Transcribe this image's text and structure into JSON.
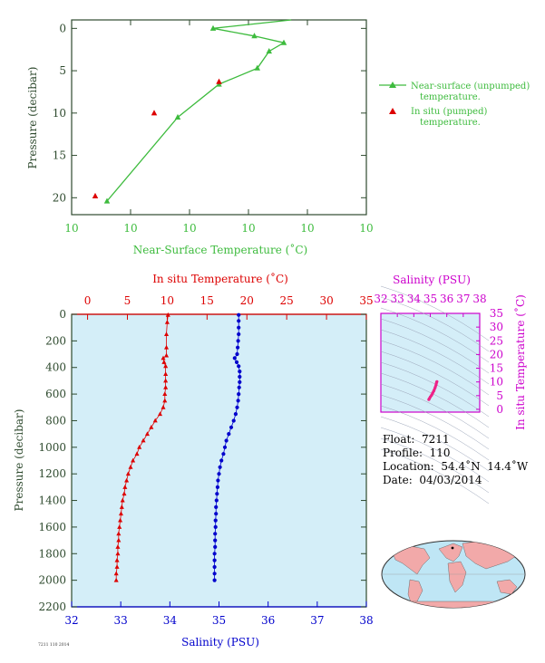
{
  "chart_data": [
    {
      "type": "line",
      "xlabel": "Near-Surface Temperature (˚C)",
      "ylabel": "Pressure (decibar)",
      "x_tick_labels": [
        "10",
        "10",
        "10",
        "10",
        "10",
        "10"
      ],
      "yticks": [
        0,
        5,
        10,
        15,
        20
      ],
      "ylim": [
        22,
        -1
      ],
      "legend": {
        "position": "right",
        "entries": [
          {
            "line1": "Near-surface (unpumped)",
            "line2": "temperature.",
            "color": "#3dbb3d"
          },
          {
            "line1": "In situ (pumped)",
            "line2": "temperature.",
            "color": "#dd0000"
          }
        ]
      },
      "series": [
        {
          "name": "Near-surface (unpumped) temperature.",
          "color": "#3dbb3d",
          "marker": "triangle",
          "points": [
            [
              9.95,
              -1.0
            ],
            [
              7.3,
              0.0
            ],
            [
              8.7,
              0.9
            ],
            [
              9.7,
              1.7
            ],
            [
              9.2,
              2.7
            ],
            [
              8.8,
              4.7
            ],
            [
              7.5,
              6.6
            ],
            [
              6.1,
              10.5
            ],
            [
              3.7,
              20.4
            ]
          ]
        },
        {
          "name": "In situ (pumped) temperature.",
          "color": "#dd0000",
          "marker": "triangle",
          "points": [
            [
              7.5,
              6.3
            ],
            [
              5.3,
              10.0
            ],
            [
              3.3,
              19.8
            ]
          ]
        }
      ]
    },
    {
      "type": "scatter",
      "title_top": "In situ Temperature (˚C)",
      "xlabel": "Salinity (PSU)",
      "ylabel": "Pressure (decibar)",
      "temp_ticks": [
        0,
        5,
        10,
        15,
        20,
        25,
        30,
        35
      ],
      "sal_ticks": [
        32,
        33,
        34,
        35,
        36,
        37,
        38
      ],
      "pressure_ticks": [
        0,
        200,
        400,
        600,
        800,
        1000,
        1200,
        1400,
        1600,
        1800,
        2000,
        2200
      ],
      "temperature_series": {
        "color": "#dd0000",
        "marker": "triangle",
        "points": [
          [
            10.1,
            5
          ],
          [
            10.0,
            60
          ],
          [
            9.9,
            150
          ],
          [
            9.9,
            250
          ],
          [
            9.9,
            310
          ],
          [
            9.5,
            330
          ],
          [
            9.6,
            360
          ],
          [
            9.8,
            390
          ],
          [
            9.8,
            450
          ],
          [
            9.8,
            500
          ],
          [
            9.8,
            550
          ],
          [
            9.7,
            600
          ],
          [
            9.7,
            650
          ],
          [
            9.5,
            700
          ],
          [
            9.1,
            750
          ],
          [
            8.5,
            800
          ],
          [
            8.0,
            850
          ],
          [
            7.5,
            900
          ],
          [
            7.0,
            950
          ],
          [
            6.5,
            1000
          ],
          [
            6.2,
            1050
          ],
          [
            5.7,
            1100
          ],
          [
            5.4,
            1150
          ],
          [
            5.1,
            1200
          ],
          [
            4.9,
            1250
          ],
          [
            4.7,
            1300
          ],
          [
            4.6,
            1350
          ],
          [
            4.4,
            1400
          ],
          [
            4.3,
            1450
          ],
          [
            4.2,
            1500
          ],
          [
            4.1,
            1550
          ],
          [
            4.0,
            1600
          ],
          [
            3.9,
            1650
          ],
          [
            3.9,
            1700
          ],
          [
            3.8,
            1750
          ],
          [
            3.8,
            1800
          ],
          [
            3.7,
            1850
          ],
          [
            3.7,
            1900
          ],
          [
            3.6,
            1950
          ],
          [
            3.6,
            2000
          ]
        ]
      },
      "salinity_series": {
        "color": "#0000cc",
        "marker": "circle",
        "points": [
          [
            35.4,
            5
          ],
          [
            35.4,
            50
          ],
          [
            35.4,
            100
          ],
          [
            35.4,
            150
          ],
          [
            35.39,
            200
          ],
          [
            35.38,
            250
          ],
          [
            35.37,
            300
          ],
          [
            35.32,
            330
          ],
          [
            35.36,
            360
          ],
          [
            35.4,
            390
          ],
          [
            35.42,
            430
          ],
          [
            35.42,
            470
          ],
          [
            35.42,
            510
          ],
          [
            35.41,
            550
          ],
          [
            35.4,
            600
          ],
          [
            35.39,
            650
          ],
          [
            35.37,
            700
          ],
          [
            35.34,
            750
          ],
          [
            35.3,
            800
          ],
          [
            35.25,
            850
          ],
          [
            35.2,
            900
          ],
          [
            35.15,
            950
          ],
          [
            35.12,
            1000
          ],
          [
            35.09,
            1050
          ],
          [
            35.05,
            1100
          ],
          [
            35.02,
            1150
          ],
          [
            35.0,
            1200
          ],
          [
            34.98,
            1250
          ],
          [
            34.97,
            1300
          ],
          [
            34.96,
            1350
          ],
          [
            34.95,
            1400
          ],
          [
            34.94,
            1450
          ],
          [
            34.94,
            1500
          ],
          [
            34.93,
            1550
          ],
          [
            34.93,
            1600
          ],
          [
            34.92,
            1650
          ],
          [
            34.92,
            1700
          ],
          [
            34.92,
            1750
          ],
          [
            34.91,
            1800
          ],
          [
            34.91,
            1850
          ],
          [
            34.91,
            1900
          ],
          [
            34.91,
            1950
          ],
          [
            34.91,
            2000
          ]
        ]
      }
    },
    {
      "type": "scatter",
      "xlabel": "Salinity (PSU)",
      "ylabel": "In situ Temperature (˚C)",
      "x_ticks": [
        32,
        33,
        34,
        35,
        36,
        37,
        38
      ],
      "y_ticks": [
        0,
        5,
        10,
        15,
        20,
        25,
        30,
        35
      ],
      "color": "#ee2288",
      "points": [
        [
          35.4,
          10.1
        ],
        [
          35.38,
          9.8
        ],
        [
          35.35,
          9.0
        ],
        [
          35.3,
          8.0
        ],
        [
          35.22,
          6.8
        ],
        [
          35.15,
          6.0
        ],
        [
          35.08,
          5.2
        ],
        [
          35.0,
          4.5
        ],
        [
          34.94,
          3.9
        ],
        [
          34.91,
          3.6
        ]
      ]
    }
  ],
  "info": {
    "float": "Float:  7211",
    "profile": "Profile:  110",
    "location": "Location:  54.4˚N  14.4˚W",
    "date": "Date:  04/03/2014"
  },
  "footer_code": "7211 110 2014"
}
